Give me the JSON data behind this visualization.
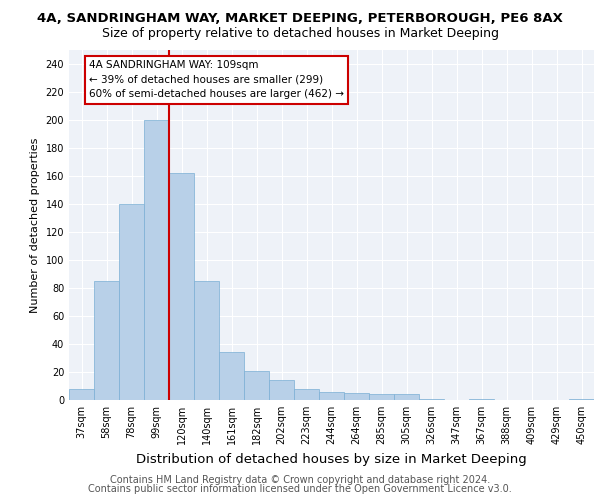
{
  "title1": "4A, SANDRINGHAM WAY, MARKET DEEPING, PETERBOROUGH, PE6 8AX",
  "title2": "Size of property relative to detached houses in Market Deeping",
  "xlabel": "Distribution of detached houses by size in Market Deeping",
  "ylabel": "Number of detached properties",
  "categories": [
    "37sqm",
    "58sqm",
    "78sqm",
    "99sqm",
    "120sqm",
    "140sqm",
    "161sqm",
    "182sqm",
    "202sqm",
    "223sqm",
    "244sqm",
    "264sqm",
    "285sqm",
    "305sqm",
    "326sqm",
    "347sqm",
    "367sqm",
    "388sqm",
    "409sqm",
    "429sqm",
    "450sqm"
  ],
  "values": [
    8,
    85,
    140,
    200,
    162,
    85,
    34,
    21,
    14,
    8,
    6,
    5,
    4,
    4,
    1,
    0,
    1,
    0,
    0,
    0,
    1
  ],
  "bar_color": "#b8d0e8",
  "bar_edge_color": "#7aafd4",
  "vline_x": 3.5,
  "vline_color": "#cc0000",
  "annotation_lines": [
    "4A SANDRINGHAM WAY: 109sqm",
    "← 39% of detached houses are smaller (299)",
    "60% of semi-detached houses are larger (462) →"
  ],
  "annotation_box_color": "#cc0000",
  "ylim": [
    0,
    250
  ],
  "yticks": [
    0,
    20,
    40,
    60,
    80,
    100,
    120,
    140,
    160,
    180,
    200,
    220,
    240
  ],
  "footer1": "Contains HM Land Registry data © Crown copyright and database right 2024.",
  "footer2": "Contains public sector information licensed under the Open Government Licence v3.0.",
  "bg_color": "#eef2f8",
  "title1_fontsize": 9.5,
  "title2_fontsize": 9,
  "xlabel_fontsize": 9.5,
  "ylabel_fontsize": 8,
  "footer_fontsize": 7,
  "tick_fontsize": 7,
  "annot_fontsize": 7.5
}
